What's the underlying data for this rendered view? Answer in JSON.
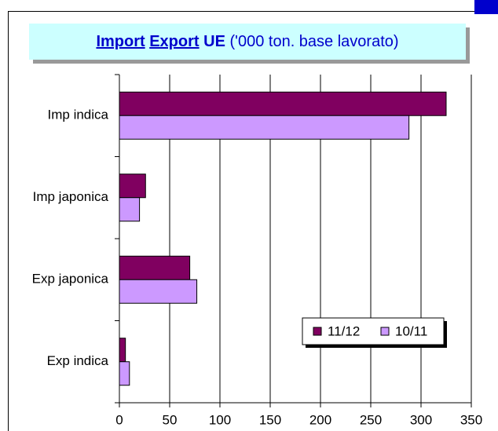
{
  "chart_data": {
    "type": "hbar",
    "title_parts": [
      "Import",
      "Export",
      "UE",
      "('000 ton. base lavorato)"
    ],
    "categories": [
      "Imp indica",
      "Imp japonica",
      "Exp japonica",
      "Exp indica"
    ],
    "series": [
      {
        "name": "11/12",
        "color": "#800060",
        "values": [
          325,
          26,
          70,
          6
        ]
      },
      {
        "name": "10/11",
        "color": "#cc99ff",
        "values": [
          288,
          20,
          77,
          10
        ]
      }
    ],
    "xlim": [
      0,
      350
    ],
    "xticks": [
      0,
      50,
      100,
      150,
      200,
      250,
      300,
      350
    ],
    "grid": true,
    "legend": "lower right"
  }
}
